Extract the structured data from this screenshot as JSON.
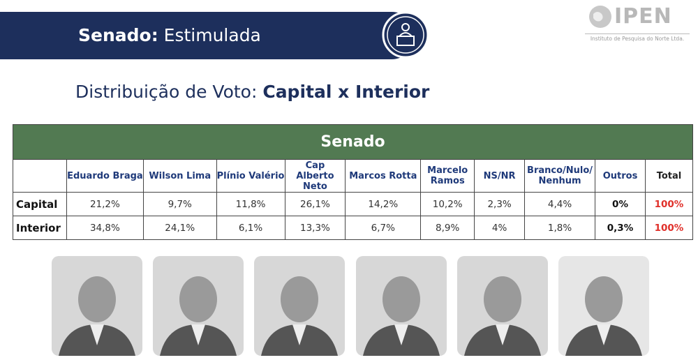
{
  "header": {
    "title_bold": "Senado:",
    "title_rest": "Estimulada"
  },
  "logo": {
    "name": "IPEN",
    "subtitle": "Instituto de Pesquisa do Norte Ltda."
  },
  "subtitle": {
    "lead": "Distribuição de Voto:",
    "bold": "Capital x Interior"
  },
  "table": {
    "title": "Senado",
    "columns": [
      "Eduardo Braga",
      "Wilson Lima",
      "Plínio Valério",
      "Cap Alberto Neto",
      "Marcos Rotta",
      "Marcelo Ramos",
      "NS/NR",
      "Branco/Nulo/ Nenhum",
      "Outros",
      "Total"
    ],
    "rows": [
      {
        "label": "Capital",
        "cells": [
          "21,2%",
          "9,7%",
          "11,8%",
          "26,1%",
          "14,2%",
          "10,2%",
          "2,3%",
          "4,4%",
          "0%",
          "100%"
        ]
      },
      {
        "label": "Interior",
        "cells": [
          "34,8%",
          "24,1%",
          "6,1%",
          "13,3%",
          "6,7%",
          "8,9%",
          "4%",
          "1,8%",
          "0,3%",
          "100%"
        ]
      }
    ]
  }
}
